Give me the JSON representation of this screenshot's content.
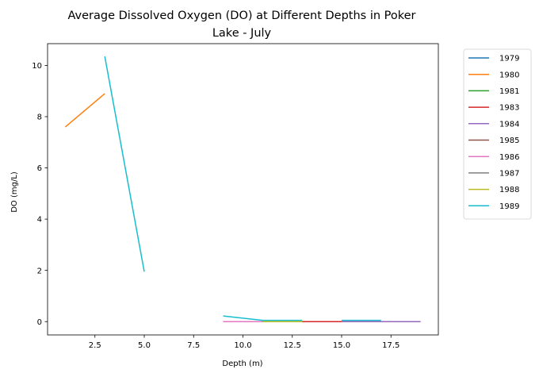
{
  "chart_data": {
    "type": "line",
    "title_line1": "Average Dissolved Oxygen (DO) at Different Depths in Poker",
    "title_line2": "Lake - July",
    "xlabel": "Depth (m)",
    "ylabel": "DO (mg/L)",
    "xlim": [
      0.1,
      19.9
    ],
    "ylim": [
      -0.52,
      10.85
    ],
    "xticks": [
      2.5,
      5.0,
      7.5,
      10.0,
      12.5,
      15.0,
      17.5
    ],
    "xtick_labels": [
      "2.5",
      "5.0",
      "7.5",
      "10.0",
      "12.5",
      "15.0",
      "17.5"
    ],
    "yticks": [
      0,
      2,
      4,
      6,
      8,
      10
    ],
    "ytick_labels": [
      "0",
      "2",
      "4",
      "6",
      "8",
      "10"
    ],
    "grid": false,
    "legend_position": "outside-top-right",
    "series": [
      {
        "name": "1979",
        "color": "#1f77b4",
        "x": [
          9,
          11,
          13
        ],
        "y": [
          0.0,
          0.0,
          0.0
        ]
      },
      {
        "name": "1980",
        "color": "#ff7f0e",
        "x": [
          1,
          3
        ],
        "y": [
          7.6,
          8.9
        ]
      },
      {
        "name": "1981",
        "color": "#2ca02c",
        "x": [
          9,
          11,
          13
        ],
        "y": [
          0.0,
          0.0,
          0.0
        ]
      },
      {
        "name": "1983",
        "color": "#d62728",
        "x": [
          9,
          11,
          13,
          15,
          17
        ],
        "y": [
          0.0,
          0.0,
          0.0,
          0.0,
          0.0
        ]
      },
      {
        "name": "1984",
        "color": "#9467bd",
        "x": [
          15,
          17,
          19
        ],
        "y": [
          0.0,
          0.0,
          0.0
        ]
      },
      {
        "name": "1985",
        "color": "#8c564b",
        "x": [
          9,
          11,
          13
        ],
        "y": [
          0.0,
          0.0,
          0.0
        ]
      },
      {
        "name": "1986",
        "color": "#e377c2",
        "x": [
          9,
          11
        ],
        "y": [
          0.0,
          0.0
        ]
      },
      {
        "name": "1987",
        "color": "#7f7f7f",
        "x": [
          11,
          13
        ],
        "y": [
          0.0,
          0.0
        ]
      },
      {
        "name": "1988",
        "color": "#bcbd22",
        "x": [
          11,
          13
        ],
        "y": [
          0.0,
          0.0
        ]
      },
      {
        "name": "1989",
        "color": "#17becf",
        "x": [
          3,
          5
        ],
        "y": [
          10.35,
          1.95
        ]
      },
      {
        "name": "1989",
        "color": "#17becf",
        "x": [
          9,
          11,
          13
        ],
        "y": [
          0.22,
          0.05,
          0.05
        ],
        "legend": false
      },
      {
        "name": "1989",
        "color": "#17becf",
        "x": [
          15,
          17
        ],
        "y": [
          0.05,
          0.05
        ],
        "legend": false
      }
    ]
  }
}
